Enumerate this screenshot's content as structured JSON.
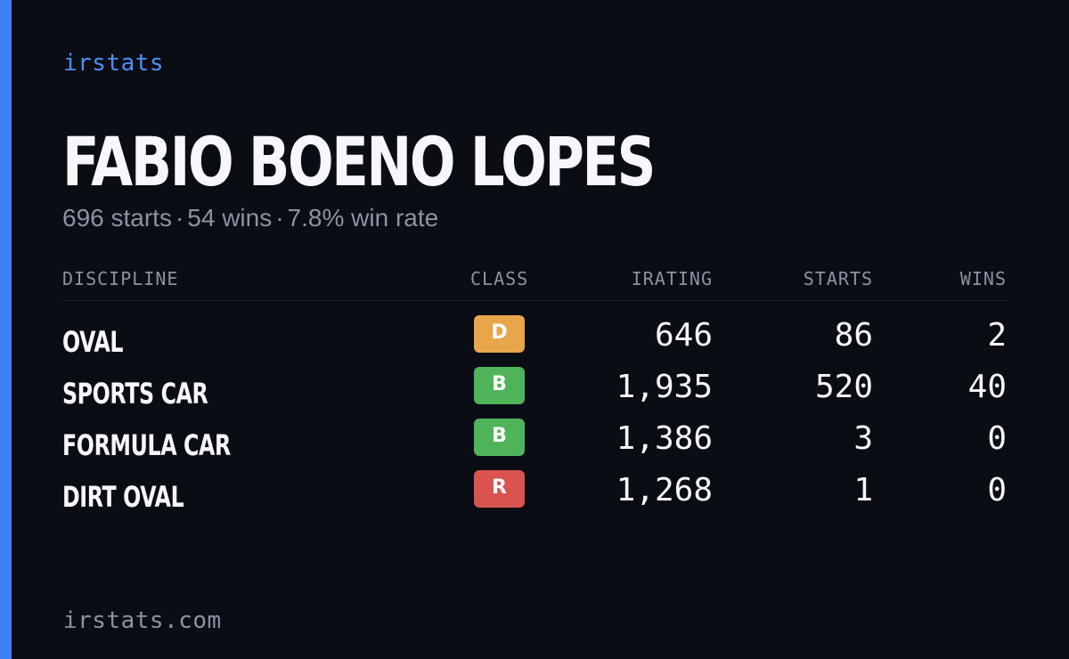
{
  "brand": "irstats",
  "player": {
    "name": "FABIO BOENO LOPES",
    "summary": {
      "starts": "696 starts",
      "wins": "54 wins",
      "win_rate": "7.8% win rate",
      "separator": "·"
    }
  },
  "table": {
    "headers": {
      "discipline": "DISCIPLINE",
      "class": "CLASS",
      "irating": "IRATING",
      "starts": "STARTS",
      "wins": "WINS"
    },
    "rows": [
      {
        "discipline": "OVAL",
        "class": "D",
        "class_color": "#e8a64a",
        "irating": "646",
        "starts": "86",
        "wins": "2"
      },
      {
        "discipline": "SPORTS CAR",
        "class": "B",
        "class_color": "#4fb35a",
        "irating": "1,935",
        "starts": "520",
        "wins": "40"
      },
      {
        "discipline": "FORMULA CAR",
        "class": "B",
        "class_color": "#4fb35a",
        "irating": "1,386",
        "starts": "3",
        "wins": "0"
      },
      {
        "discipline": "DIRT OVAL",
        "class": "R",
        "class_color": "#d9534f",
        "irating": "1,268",
        "starts": "1",
        "wins": "0"
      }
    ]
  },
  "footer": "irstats.com",
  "colors": {
    "background": "#0a0d14",
    "accent": "#3b82f6",
    "brand_text": "#4f8ff7",
    "muted_text": "#8a93a3",
    "primary_text": "#f5f7fb"
  }
}
